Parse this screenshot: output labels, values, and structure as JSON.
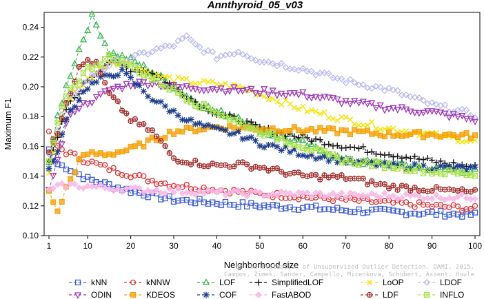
{
  "chart_data": {
    "type": "line",
    "title": "Annthyroid_05_v03",
    "xlabel": "Neighborhood size",
    "ylabel": "Maximum F1",
    "xlim": [
      1,
      100
    ],
    "ylim": [
      0.1,
      0.25
    ],
    "xticks": [
      "1",
      "10",
      "20",
      "30",
      "40",
      "50",
      "60",
      "70",
      "80",
      "90",
      "100"
    ],
    "yticks": [
      "0.10",
      "0.12",
      "0.14",
      "0.16",
      "0.18",
      "0.20",
      "0.22",
      "0.24"
    ],
    "grid": false,
    "legend_position": "bottom",
    "series": [
      {
        "name": "kNN",
        "color": "#3b5bdb",
        "marker": "square",
        "points": [
          [
            1,
            0.158
          ],
          [
            3,
            0.148
          ],
          [
            5,
            0.146
          ],
          [
            10,
            0.138
          ],
          [
            15,
            0.134
          ],
          [
            20,
            0.13
          ],
          [
            25,
            0.127
          ],
          [
            30,
            0.124
          ],
          [
            40,
            0.122
          ],
          [
            50,
            0.12
          ],
          [
            60,
            0.119
          ],
          [
            70,
            0.117
          ],
          [
            80,
            0.116
          ],
          [
            90,
            0.115
          ],
          [
            100,
            0.114
          ]
        ]
      },
      {
        "name": "kNNW",
        "color": "#e03131",
        "marker": "circle",
        "points": [
          [
            1,
            0.17
          ],
          [
            3,
            0.16
          ],
          [
            5,
            0.156
          ],
          [
            10,
            0.15
          ],
          [
            15,
            0.145
          ],
          [
            20,
            0.141
          ],
          [
            25,
            0.137
          ],
          [
            30,
            0.134
          ],
          [
            40,
            0.131
          ],
          [
            50,
            0.128
          ],
          [
            60,
            0.126
          ],
          [
            70,
            0.124
          ],
          [
            80,
            0.122
          ],
          [
            90,
            0.12
          ],
          [
            100,
            0.118
          ]
        ]
      },
      {
        "name": "LOF",
        "color": "#37b24d",
        "marker": "triangle",
        "points": [
          [
            1,
            0.149
          ],
          [
            3,
            0.18
          ],
          [
            5,
            0.2
          ],
          [
            8,
            0.225
          ],
          [
            11,
            0.247
          ],
          [
            13,
            0.236
          ],
          [
            15,
            0.223
          ],
          [
            20,
            0.218
          ],
          [
            25,
            0.21
          ],
          [
            30,
            0.2
          ],
          [
            35,
            0.19
          ],
          [
            40,
            0.183
          ],
          [
            45,
            0.18
          ],
          [
            50,
            0.17
          ],
          [
            60,
            0.162
          ],
          [
            70,
            0.15
          ],
          [
            80,
            0.148
          ],
          [
            90,
            0.145
          ],
          [
            100,
            0.143
          ]
        ]
      },
      {
        "name": "SimplifiedLOF",
        "color": "#111111",
        "marker": "plus",
        "points": [
          [
            1,
            0.15
          ],
          [
            3,
            0.165
          ],
          [
            5,
            0.185
          ],
          [
            10,
            0.205
          ],
          [
            15,
            0.217
          ],
          [
            20,
            0.212
          ],
          [
            25,
            0.21
          ],
          [
            30,
            0.2
          ],
          [
            35,
            0.19
          ],
          [
            40,
            0.182
          ],
          [
            45,
            0.178
          ],
          [
            50,
            0.172
          ],
          [
            60,
            0.166
          ],
          [
            70,
            0.16
          ],
          [
            80,
            0.155
          ],
          [
            90,
            0.15
          ],
          [
            100,
            0.146
          ]
        ]
      },
      {
        "name": "LoOP",
        "color": "#f5e400",
        "marker": "x",
        "points": [
          [
            1,
            0.142
          ],
          [
            3,
            0.17
          ],
          [
            5,
            0.19
          ],
          [
            10,
            0.205
          ],
          [
            15,
            0.217
          ],
          [
            20,
            0.216
          ],
          [
            25,
            0.208
          ],
          [
            30,
            0.205
          ],
          [
            35,
            0.203
          ],
          [
            40,
            0.202
          ],
          [
            45,
            0.2
          ],
          [
            50,
            0.195
          ],
          [
            60,
            0.185
          ],
          [
            70,
            0.178
          ],
          [
            80,
            0.172
          ],
          [
            90,
            0.168
          ],
          [
            100,
            0.163
          ]
        ]
      },
      {
        "name": "LDOF",
        "color": "#b8b8ee",
        "marker": "diamond",
        "points": [
          [
            1,
            0.155
          ],
          [
            3,
            0.17
          ],
          [
            5,
            0.19
          ],
          [
            10,
            0.205
          ],
          [
            15,
            0.215
          ],
          [
            20,
            0.219
          ],
          [
            25,
            0.224
          ],
          [
            30,
            0.228
          ],
          [
            33,
            0.233
          ],
          [
            35,
            0.228
          ],
          [
            40,
            0.22
          ],
          [
            45,
            0.224
          ],
          [
            50,
            0.218
          ],
          [
            60,
            0.212
          ],
          [
            70,
            0.204
          ],
          [
            80,
            0.198
          ],
          [
            90,
            0.188
          ],
          [
            100,
            0.181
          ]
        ]
      },
      {
        "name": "ODIN",
        "color": "#9c36b5",
        "marker": "triangle-down",
        "points": [
          [
            1,
            0.131
          ],
          [
            3,
            0.15
          ],
          [
            5,
            0.175
          ],
          [
            7,
            0.185
          ],
          [
            10,
            0.19
          ],
          [
            12,
            0.192
          ],
          [
            15,
            0.198
          ],
          [
            20,
            0.202
          ],
          [
            25,
            0.203
          ],
          [
            30,
            0.2
          ],
          [
            40,
            0.199
          ],
          [
            50,
            0.197
          ],
          [
            60,
            0.195
          ],
          [
            70,
            0.19
          ],
          [
            80,
            0.186
          ],
          [
            90,
            0.183
          ],
          [
            100,
            0.178
          ]
        ]
      },
      {
        "name": "KDEOS",
        "color": "#f59f00",
        "marker": "square-fill",
        "points": [
          [
            1,
            0.13
          ],
          [
            3,
            0.115
          ],
          [
            5,
            0.132
          ],
          [
            8,
            0.15
          ],
          [
            10,
            0.155
          ],
          [
            15,
            0.155
          ],
          [
            20,
            0.158
          ],
          [
            25,
            0.164
          ],
          [
            30,
            0.17
          ],
          [
            40,
            0.173
          ],
          [
            50,
            0.172
          ],
          [
            60,
            0.171
          ],
          [
            70,
            0.17
          ],
          [
            80,
            0.168
          ],
          [
            90,
            0.168
          ],
          [
            100,
            0.167
          ]
        ]
      },
      {
        "name": "COF",
        "color": "#1c3c8c",
        "marker": "asterisk",
        "points": [
          [
            1,
            0.145
          ],
          [
            3,
            0.155
          ],
          [
            5,
            0.18
          ],
          [
            10,
            0.2
          ],
          [
            15,
            0.208
          ],
          [
            18,
            0.21
          ],
          [
            20,
            0.205
          ],
          [
            25,
            0.192
          ],
          [
            30,
            0.183
          ],
          [
            35,
            0.175
          ],
          [
            40,
            0.171
          ],
          [
            45,
            0.168
          ],
          [
            50,
            0.162
          ],
          [
            60,
            0.155
          ],
          [
            70,
            0.15
          ],
          [
            80,
            0.147
          ],
          [
            90,
            0.146
          ],
          [
            100,
            0.145
          ]
        ]
      },
      {
        "name": "FastABOD",
        "color": "#f7b7e6",
        "marker": "diamond-fill",
        "points": [
          [
            1,
            0.131
          ],
          [
            5,
            0.134
          ],
          [
            10,
            0.133
          ],
          [
            15,
            0.132
          ],
          [
            20,
            0.131
          ],
          [
            30,
            0.13
          ],
          [
            40,
            0.129
          ],
          [
            50,
            0.128
          ],
          [
            60,
            0.128
          ],
          [
            70,
            0.127
          ],
          [
            80,
            0.127
          ],
          [
            90,
            0.126
          ],
          [
            100,
            0.126
          ]
        ]
      },
      {
        "name": "LDF",
        "color": "#a02828",
        "marker": "circle-plus",
        "points": [
          [
            1,
            0.156
          ],
          [
            3,
            0.17
          ],
          [
            5,
            0.19
          ],
          [
            8,
            0.212
          ],
          [
            10,
            0.218
          ],
          [
            12,
            0.215
          ],
          [
            15,
            0.195
          ],
          [
            18,
            0.185
          ],
          [
            20,
            0.178
          ],
          [
            25,
            0.17
          ],
          [
            30,
            0.152
          ],
          [
            35,
            0.149
          ],
          [
            40,
            0.147
          ],
          [
            45,
            0.148
          ],
          [
            50,
            0.146
          ],
          [
            60,
            0.14
          ],
          [
            70,
            0.139
          ],
          [
            80,
            0.133
          ],
          [
            90,
            0.131
          ],
          [
            100,
            0.129
          ]
        ]
      },
      {
        "name": "INFLO",
        "color": "#a9e34b",
        "marker": "hatched-square",
        "points": [
          [
            1,
            0.15
          ],
          [
            3,
            0.175
          ],
          [
            5,
            0.195
          ],
          [
            10,
            0.212
          ],
          [
            15,
            0.22
          ],
          [
            20,
            0.214
          ],
          [
            25,
            0.205
          ],
          [
            30,
            0.198
          ],
          [
            35,
            0.189
          ],
          [
            40,
            0.183
          ],
          [
            45,
            0.176
          ],
          [
            50,
            0.17
          ],
          [
            60,
            0.16
          ],
          [
            70,
            0.15
          ],
          [
            80,
            0.147
          ],
          [
            90,
            0.143
          ],
          [
            100,
            0.141
          ]
        ]
      }
    ]
  },
  "watermark": {
    "line1": "Campos, Zimek, Sander, Campello, Micenkova, Schubert, Assent, Houle",
    "line2": "On the Evaluation of Unsupervised Outlier Detection. DAMI, 2015."
  }
}
